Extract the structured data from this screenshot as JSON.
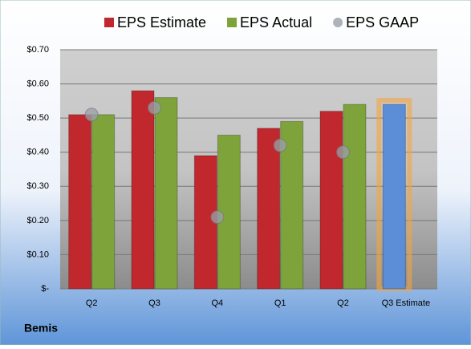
{
  "chart_data": {
    "type": "bar",
    "categories": [
      "Q2",
      "Q3",
      "Q4",
      "Q1",
      "Q2",
      "Q3 Estimate"
    ],
    "series": [
      {
        "name": "EPS Estimate",
        "color": "#c0282d",
        "colors": [
          "#c0282d",
          "#c0282d",
          "#c0282d",
          "#c0282d",
          "#c0282d",
          "#5b8ed6"
        ],
        "values": [
          0.51,
          0.58,
          0.39,
          0.47,
          0.52,
          0.54
        ]
      },
      {
        "name": "EPS Actual",
        "color": "#7ea33a",
        "values": [
          0.51,
          0.56,
          0.45,
          0.49,
          0.54,
          null
        ]
      },
      {
        "name": "EPS GAAP",
        "color": "#9aa0a8",
        "marker": "circle",
        "values": [
          0.51,
          0.53,
          0.21,
          0.42,
          0.4,
          null
        ]
      }
    ],
    "ylim": [
      0,
      0.7
    ],
    "yticks": [
      {
        "value": 0,
        "label": "$-"
      },
      {
        "value": 0.1,
        "label": "$0.10"
      },
      {
        "value": 0.2,
        "label": "$0.20"
      },
      {
        "value": 0.3,
        "label": "$0.30"
      },
      {
        "value": 0.4,
        "label": "$0.40"
      },
      {
        "value": 0.5,
        "label": "$0.50"
      },
      {
        "value": 0.6,
        "label": "$0.60"
      },
      {
        "value": 0.7,
        "label": "$0.70"
      }
    ],
    "grid": true,
    "legend": "top",
    "footer": "Bemis"
  }
}
